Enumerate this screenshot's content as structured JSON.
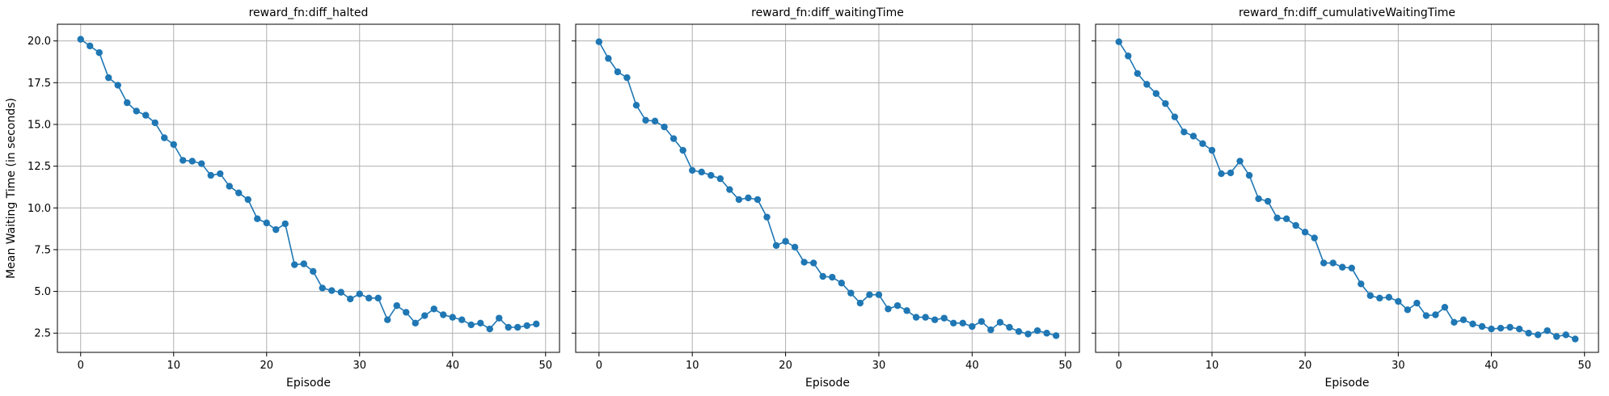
{
  "figure": {
    "shared_ylabel": "Mean Waiting Time (in seconds)"
  },
  "chart_data": [
    {
      "type": "line",
      "title": "reward_fn:diff_halted",
      "xlabel": "Episode",
      "ylabel": "Mean Waiting Time (in seconds)",
      "xlim": [
        -2.5,
        51.5
      ],
      "ylim": [
        1.35,
        21.0
      ],
      "xticks": [
        0,
        10,
        20,
        30,
        40,
        50
      ],
      "yticks": [
        2.5,
        5.0,
        7.5,
        10.0,
        12.5,
        15.0,
        17.5,
        20.0
      ],
      "ytick_labels": [
        "2.5",
        "5.0",
        "7.5",
        "10.0",
        "12.5",
        "15.0",
        "17.5",
        "20.0"
      ],
      "grid": true,
      "color": "#1f77b4",
      "marker": "circle",
      "x": [
        0,
        1,
        2,
        3,
        4,
        5,
        6,
        7,
        8,
        9,
        10,
        11,
        12,
        13,
        14,
        15,
        16,
        17,
        18,
        19,
        20,
        21,
        22,
        23,
        24,
        25,
        26,
        27,
        28,
        29,
        30,
        31,
        32,
        33,
        34,
        35,
        36,
        37,
        38,
        39,
        40,
        41,
        42,
        43,
        44,
        45,
        46,
        47,
        48,
        49
      ],
      "y": [
        20.1,
        19.7,
        19.3,
        17.8,
        17.35,
        16.3,
        15.8,
        15.55,
        15.1,
        14.2,
        13.8,
        12.85,
        12.8,
        12.65,
        11.95,
        12.05,
        11.3,
        10.9,
        10.5,
        9.35,
        9.1,
        8.7,
        9.05,
        6.6,
        6.65,
        6.2,
        5.2,
        5.05,
        4.95,
        4.55,
        4.85,
        4.6,
        4.6,
        3.3,
        4.15,
        3.75,
        3.1,
        3.55,
        3.95,
        3.6,
        3.45,
        3.3,
        3.0,
        3.1,
        2.75,
        3.4,
        2.85,
        2.85,
        2.95,
        3.05
      ]
    },
    {
      "type": "line",
      "title": "reward_fn:diff_waitingTime",
      "xlabel": "Episode",
      "xlim": [
        -2.5,
        51.5
      ],
      "ylim": [
        1.35,
        21.0
      ],
      "xticks": [
        0,
        10,
        20,
        30,
        40,
        50
      ],
      "yticks": [
        2.5,
        5.0,
        7.5,
        10.0,
        12.5,
        15.0,
        17.5,
        20.0
      ],
      "grid": true,
      "color": "#1f77b4",
      "marker": "circle",
      "x": [
        0,
        1,
        2,
        3,
        4,
        5,
        6,
        7,
        8,
        9,
        10,
        11,
        12,
        13,
        14,
        15,
        16,
        17,
        18,
        19,
        20,
        21,
        22,
        23,
        24,
        25,
        26,
        27,
        28,
        29,
        30,
        31,
        32,
        33,
        34,
        35,
        36,
        37,
        38,
        39,
        40,
        41,
        42,
        43,
        44,
        45,
        46,
        47,
        48,
        49
      ],
      "y": [
        19.95,
        18.95,
        18.15,
        17.8,
        16.15,
        15.25,
        15.2,
        14.85,
        14.15,
        13.45,
        12.25,
        12.15,
        11.95,
        11.75,
        11.1,
        10.5,
        10.6,
        10.5,
        9.45,
        7.75,
        8.0,
        7.65,
        6.75,
        6.7,
        5.9,
        5.85,
        5.5,
        4.9,
        4.3,
        4.8,
        4.8,
        3.95,
        4.15,
        3.85,
        3.45,
        3.45,
        3.3,
        3.4,
        3.1,
        3.1,
        2.9,
        3.2,
        2.7,
        3.15,
        2.85,
        2.6,
        2.45,
        2.65,
        2.5,
        2.35
      ]
    },
    {
      "type": "line",
      "title": "reward_fn:diff_cumulativeWaitingTime",
      "xlabel": "Episode",
      "xlim": [
        -2.5,
        51.5
      ],
      "ylim": [
        1.35,
        21.0
      ],
      "xticks": [
        0,
        10,
        20,
        30,
        40,
        50
      ],
      "yticks": [
        2.5,
        5.0,
        7.5,
        10.0,
        12.5,
        15.0,
        17.5,
        20.0
      ],
      "grid": true,
      "color": "#1f77b4",
      "marker": "circle",
      "x": [
        0,
        1,
        2,
        3,
        4,
        5,
        6,
        7,
        8,
        9,
        10,
        11,
        12,
        13,
        14,
        15,
        16,
        17,
        18,
        19,
        20,
        21,
        22,
        23,
        24,
        25,
        26,
        27,
        28,
        29,
        30,
        31,
        32,
        33,
        34,
        35,
        36,
        37,
        38,
        39,
        40,
        41,
        42,
        43,
        44,
        45,
        46,
        47,
        48,
        49
      ],
      "y": [
        19.95,
        19.1,
        18.05,
        17.4,
        16.85,
        16.25,
        15.45,
        14.55,
        14.3,
        13.85,
        13.45,
        12.05,
        12.1,
        12.8,
        11.95,
        10.55,
        10.4,
        9.4,
        9.35,
        8.95,
        8.55,
        8.2,
        6.7,
        6.7,
        6.45,
        6.4,
        5.45,
        4.75,
        4.6,
        4.65,
        4.4,
        3.9,
        4.3,
        3.55,
        3.6,
        4.05,
        3.15,
        3.3,
        3.05,
        2.9,
        2.75,
        2.8,
        2.85,
        2.75,
        2.5,
        2.4,
        2.65,
        2.3,
        2.4,
        2.15
      ]
    }
  ]
}
